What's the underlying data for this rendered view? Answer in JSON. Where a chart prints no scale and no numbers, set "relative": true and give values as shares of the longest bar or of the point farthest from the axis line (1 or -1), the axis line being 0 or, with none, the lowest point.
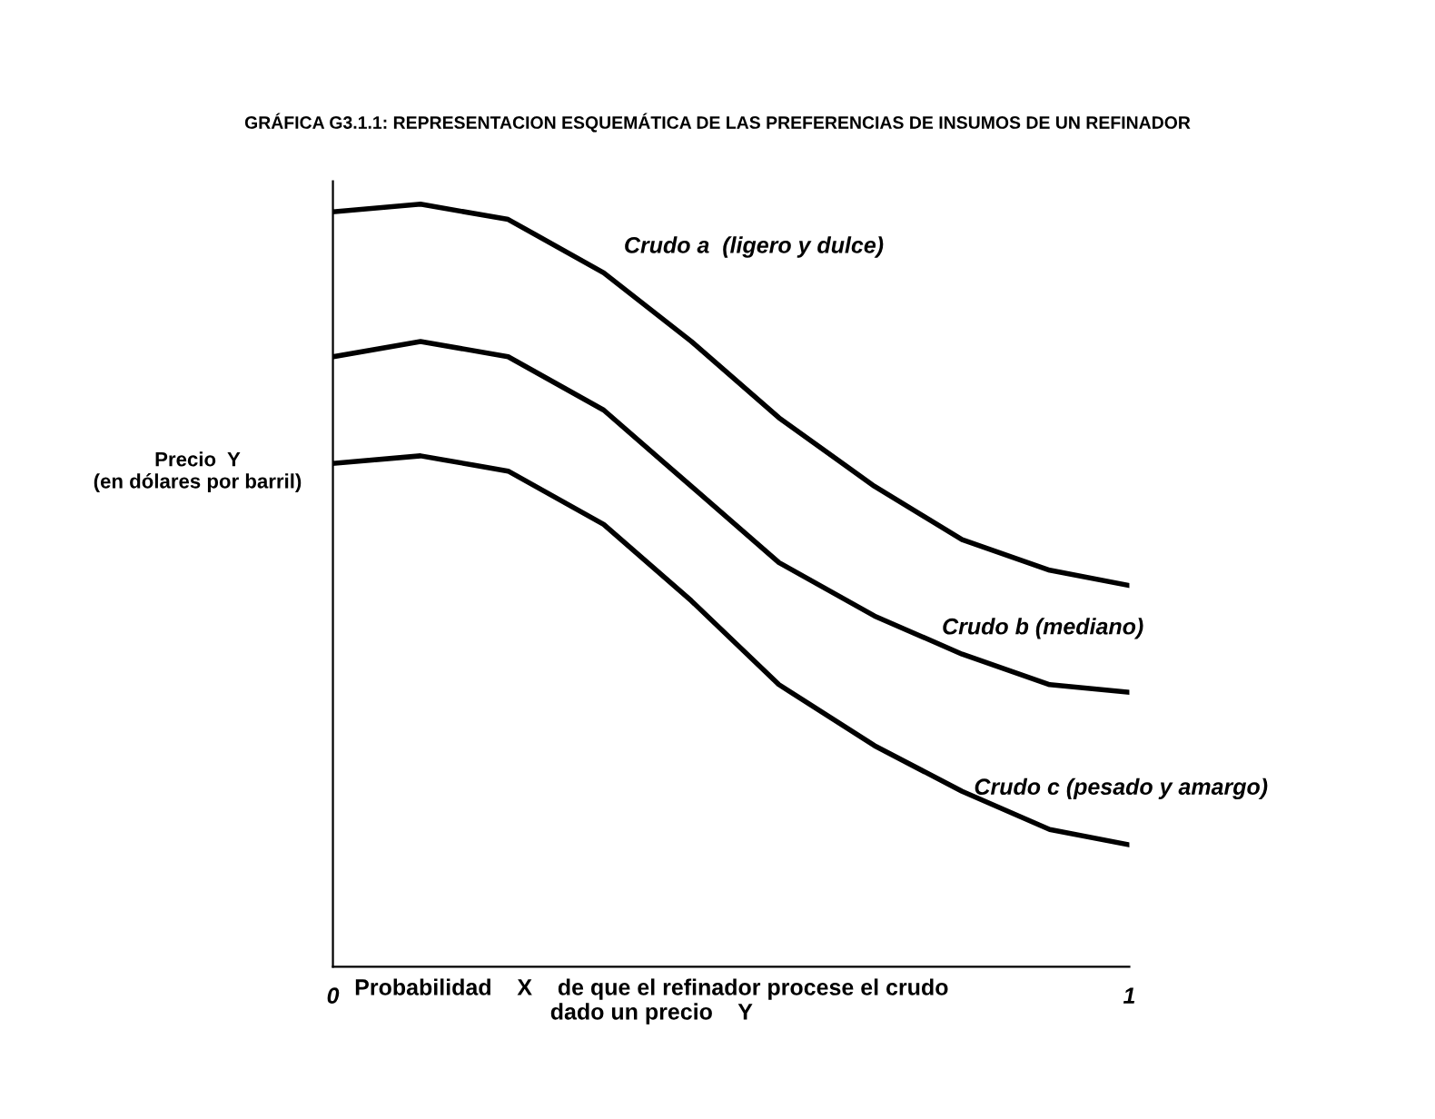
{
  "chart_data": {
    "type": "line",
    "title": "GRÁFICA G3.1.1: REPRESENTACION ESQUEMÁTICA DE LAS PREFERENCIAS DE INSUMOS DE UN REFINADOR",
    "ylabel": "Precio  Y\n(en dólares por barril)",
    "xlabel": "Probabilidad    X    de que el refinador procese el crudo\ndado un precio    Y",
    "relative": true,
    "xlim": [
      0,
      1
    ],
    "xticks": [
      0,
      1
    ],
    "x": [
      0,
      0.11,
      0.22,
      0.34,
      0.45,
      0.56,
      0.68,
      0.79,
      0.9,
      1
    ],
    "marker": "none",
    "line_style": "solid",
    "grid": false,
    "legend": false,
    "series": [
      {
        "name": "Crudo a  (ligero y dulce)",
        "color": "#000000",
        "values": [
          0.99,
          1.0,
          0.98,
          0.91,
          0.82,
          0.72,
          0.63,
          0.56,
          0.52,
          0.5
        ]
      },
      {
        "name": "Crudo b (mediano)",
        "color": "#000000",
        "values": [
          0.8,
          0.82,
          0.8,
          0.73,
          0.63,
          0.53,
          0.46,
          0.41,
          0.37,
          0.36
        ]
      },
      {
        "name": "Crudo c (pesado y amargo)",
        "color": "#000000",
        "values": [
          0.66,
          0.67,
          0.65,
          0.58,
          0.48,
          0.37,
          0.29,
          0.23,
          0.18,
          0.16
        ]
      }
    ]
  }
}
